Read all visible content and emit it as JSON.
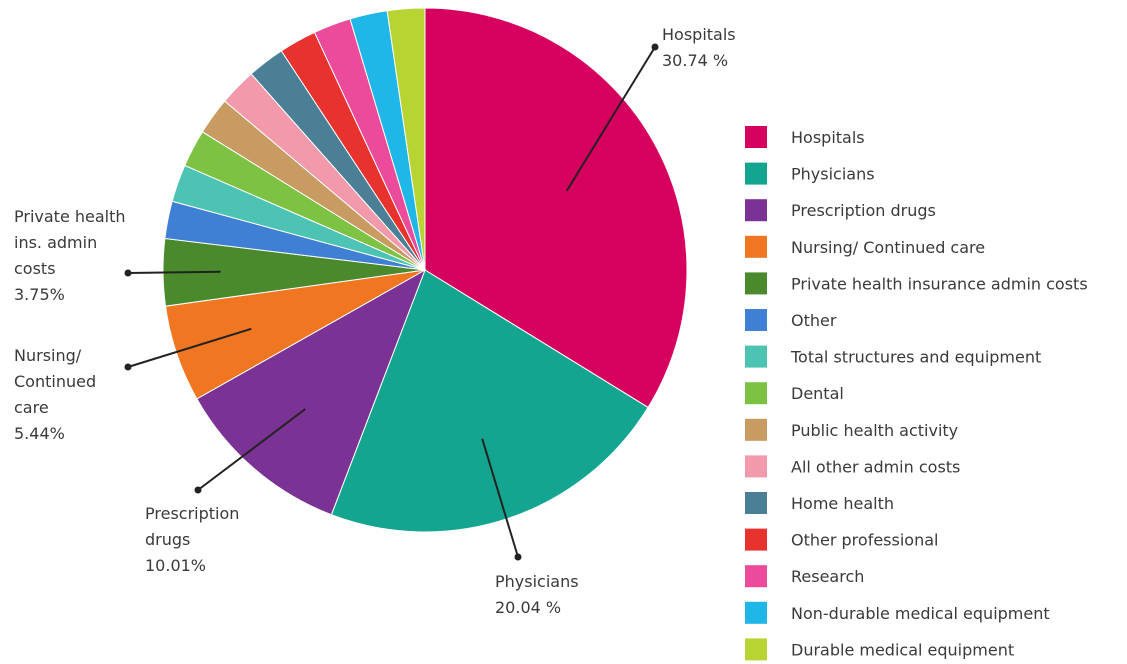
{
  "chart_data": {
    "type": "pie",
    "title": "",
    "legend_position": "right",
    "slices": [
      {
        "label": "Hospitals",
        "value": 30.74,
        "color": "#d6005f"
      },
      {
        "label": "Physicians",
        "value": 20.04,
        "color": "#13a58f"
      },
      {
        "label": "Prescription drugs",
        "value": 10.01,
        "color": "#7b3295"
      },
      {
        "label": "Nursing/ Continued care",
        "value": 5.44,
        "color": "#f07622"
      },
      {
        "label": "Private health insurance admin costs",
        "value": 3.75,
        "color": "#4a8a2c"
      },
      {
        "label": "Other",
        "value": 2.1,
        "color": "#3f7fd4"
      },
      {
        "label": "Total structures and equipment",
        "value": 2.1,
        "color": "#4cc3b3"
      },
      {
        "label": "Dental",
        "value": 2.1,
        "color": "#7dc242"
      },
      {
        "label": "Public health activity",
        "value": 2.1,
        "color": "#c79b62"
      },
      {
        "label": "All other admin costs",
        "value": 2.1,
        "color": "#f299ab"
      },
      {
        "label": "Home health",
        "value": 2.1,
        "color": "#4a7f96"
      },
      {
        "label": "Other professional",
        "value": 2.1,
        "color": "#e8322e"
      },
      {
        "label": "Research",
        "value": 2.1,
        "color": "#ec4a9a"
      },
      {
        "label": "Non-durable medical equipment",
        "value": 2.1,
        "color": "#1fb6e8"
      },
      {
        "label": "Durable medical equipment",
        "value": 2.1,
        "color": "#b7d433"
      }
    ],
    "callouts": [
      {
        "slice": 0,
        "lines": [
          "Hospitals",
          "30.74 %"
        ]
      },
      {
        "slice": 1,
        "lines": [
          "Physicians",
          "20.04 %"
        ]
      },
      {
        "slice": 2,
        "lines": [
          "Prescription",
          "drugs",
          "10.01%"
        ]
      },
      {
        "slice": 3,
        "lines": [
          "Nursing/",
          "Continued",
          "care",
          "5.44%"
        ]
      },
      {
        "slice": 4,
        "lines": [
          "Private health",
          "ins. admin",
          "costs",
          "3.75%"
        ]
      }
    ]
  }
}
